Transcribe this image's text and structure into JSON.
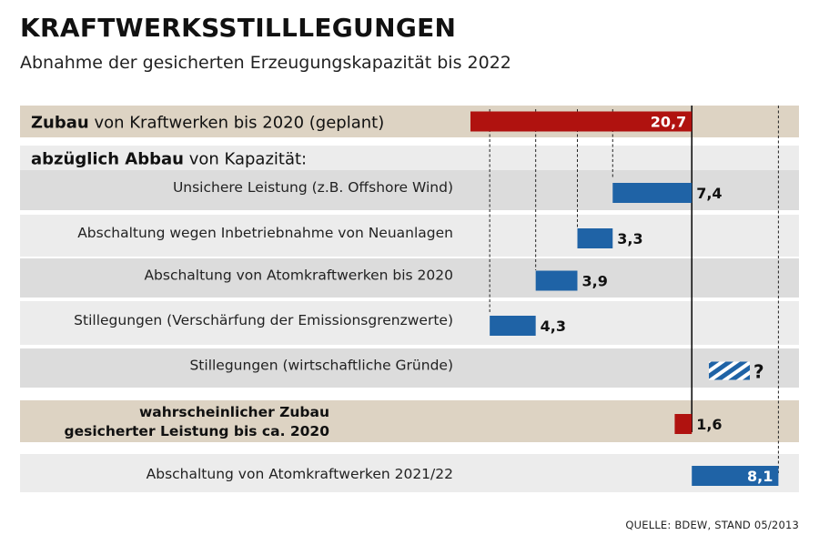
{
  "title": "KRAFTWERKSSTILLLEGUNGEN",
  "subtitle": "Abnahme der gesicherten Erzeugungskapazität bis 2022",
  "source": "QUELLE: BDEW, STAND 05/2013",
  "colors": {
    "red": "#b0120f",
    "blue": "#1f63a6",
    "beige": "#ddd3c3",
    "grey_dark": "#dcdcdc",
    "grey_light": "#ececec"
  },
  "chart_data": {
    "type": "bar",
    "subtype": "waterfall",
    "unit": "",
    "rows": [
      {
        "label_bold": "Zubau",
        "label_rest": " von Kraftwerken bis 2020 (geplant)",
        "value": 20.7,
        "value_label": "20,7",
        "kind": "total"
      },
      {
        "label_bold": "abzüglich Abbau",
        "label_rest": " von Kapazität:",
        "kind": "header"
      },
      {
        "label": "Unsichere Leistung (z.B. Offshore Wind)",
        "value": 7.4,
        "value_label": "7,4",
        "kind": "decrease"
      },
      {
        "label": "Abschaltung wegen Inbetriebnahme von Neuanlagen",
        "value": 3.3,
        "value_label": "3,3",
        "kind": "decrease"
      },
      {
        "label": "Abschaltung von Atomkraftwerken bis 2020",
        "value": 3.9,
        "value_label": "3,9",
        "kind": "decrease"
      },
      {
        "label": "Stillegungen (Verschärfung der Emissionsgrenzwerte)",
        "value": 4.3,
        "value_label": "4,3",
        "kind": "decrease"
      },
      {
        "label": "Stillegungen (wirtschaftliche Gründe)",
        "value_label": "?",
        "kind": "unknown"
      },
      {
        "label_lines": [
          "wahrscheinlicher Zubau",
          "gesicherter Leistung bis ca. 2020"
        ],
        "value": 1.6,
        "value_label": "1,6",
        "kind": "result"
      },
      {
        "label": "Abschaltung von Atomkraftwerken 2021/22",
        "value": 8.1,
        "value_label": "8,1",
        "kind": "increase"
      }
    ]
  }
}
